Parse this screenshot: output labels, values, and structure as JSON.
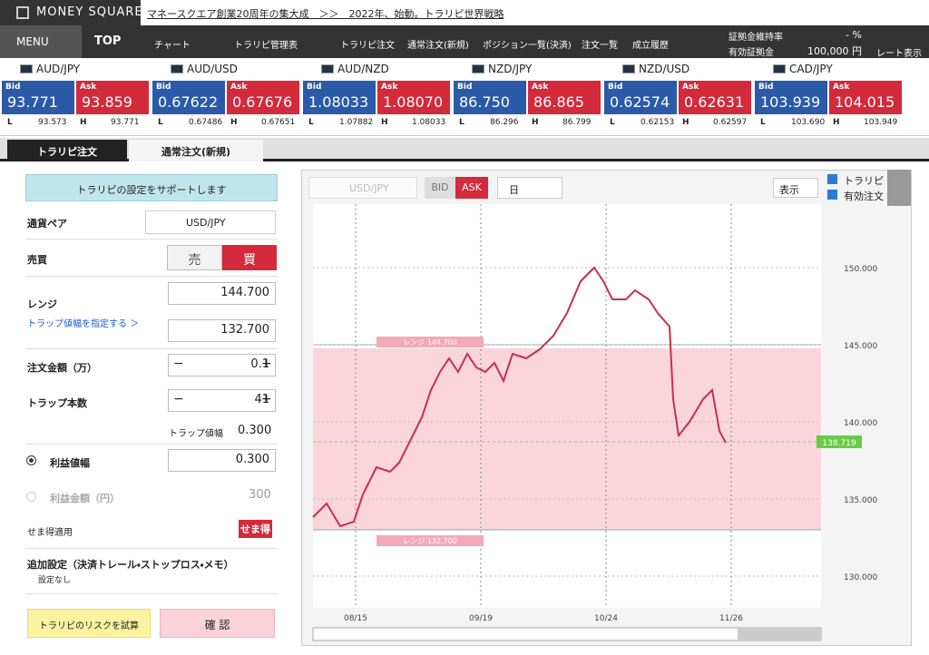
{
  "header": {
    "logo": "MONEY SQUARE",
    "banner": "マネースクエア創業20周年の集大成　＞＞　2022年、始動。トラリピ世界戦略"
  },
  "nav": {
    "menu": "MENU",
    "top": "TOP",
    "chart": "チャート",
    "manage": "トラリピ管理表",
    "trarepi_order": "トラリピ注文",
    "normal_order": "通常注文(新規)",
    "positions": "ポジション一覧(決済)",
    "orders": "注文一覧",
    "history": "成立履歴",
    "margin_ratio_label": "証拠金維持率",
    "margin_ratio": "- %",
    "equity_label": "有効証拠金",
    "equity": "100,000 円",
    "rate_display": "レート表示"
  },
  "rates": {
    "bid": "Bid",
    "ask": "Ask",
    "low": "L",
    "high": "H",
    "pairs": [
      {
        "name": "AUD/JPY",
        "bid": "93.771",
        "ask": "93.859",
        "low": "93.573",
        "high": "93.771"
      },
      {
        "name": "AUD/USD",
        "bid": "0.67622",
        "ask": "0.67676",
        "low": "0.67486",
        "high": "0.67651"
      },
      {
        "name": "AUD/NZD",
        "bid": "1.08033",
        "ask": "1.08070",
        "low": "1.07882",
        "high": "1.08033"
      },
      {
        "name": "NZD/JPY",
        "bid": "86.750",
        "ask": "86.865",
        "low": "86.296",
        "high": "86.799"
      },
      {
        "name": "NZD/USD",
        "bid": "0.62574",
        "ask": "0.62631",
        "low": "0.62153",
        "high": "0.62597"
      },
      {
        "name": "CAD/JPY",
        "bid": "103.939",
        "ask": "104.015",
        "low": "103.690",
        "high": "103.949"
      }
    ]
  },
  "tabs": [
    "トラリピ注文",
    "通常注文(新規)"
  ],
  "form": {
    "banner": "トラリピの設定をサポートします",
    "pair_label": "通貨ペア",
    "pair": "USD/JPY",
    "side_label": "売買",
    "sell": "売",
    "buy": "買",
    "range_label": "レンジ",
    "range_link": "トラップ値幅を指定する ＞",
    "range_high": "144.700",
    "range_low": "132.700",
    "amount_label": "注文金額（万）",
    "amount": "0.1",
    "traps_label": "トラップ本数",
    "traps": "41",
    "minus": "−",
    "plus": "+",
    "trap_width_label": "トラップ値幅",
    "trap_width": "0.300",
    "profit_width_label": "利益値幅",
    "profit_width": "0.300",
    "profit_amount_label": "利益金額（円）",
    "profit_amount": "300",
    "semae_label": "せま得適用",
    "semae_badge": "せま得",
    "extra_title": "追加設定（決済トレール・ストップロス・メモ）",
    "extra_value": "設定なし",
    "risk_button": "トラリピのリスクを試算",
    "confirm_button": "確 認"
  },
  "chart": {
    "pair": "USD/JPY",
    "bid": "BID",
    "ask": "ASK",
    "period": "日",
    "display": "表示",
    "check_trarepi": "トラリピ",
    "check_orders": "有効注文",
    "price_labels": [
      "150.000",
      "145.000",
      "140.000",
      "135.000",
      "130.000"
    ],
    "current_price": "138.719",
    "dates": [
      "08/15",
      "09/19",
      "10/24",
      "11/26"
    ],
    "range_high_label": "レンジ 144.700",
    "range_low_label": "レンジ 132.700"
  }
}
